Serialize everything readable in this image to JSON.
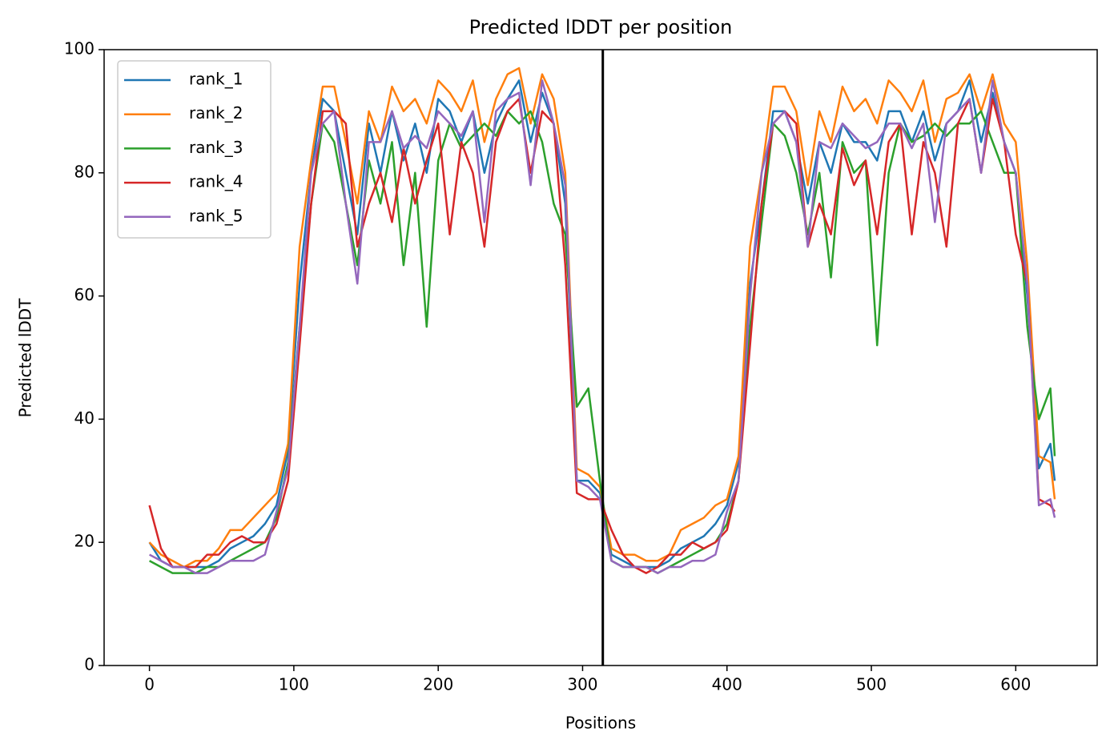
{
  "chart_data": {
    "type": "line",
    "title": "Predicted lDDT per position",
    "xlabel": "Positions",
    "ylabel": "Predicted lDDT",
    "x": [
      0,
      8,
      16,
      24,
      32,
      40,
      48,
      56,
      64,
      72,
      80,
      88,
      96,
      104,
      112,
      120,
      128,
      136,
      144,
      152,
      160,
      168,
      176,
      184,
      192,
      200,
      208,
      216,
      224,
      232,
      240,
      248,
      256,
      264,
      272,
      280,
      288,
      296,
      304,
      312,
      320,
      328,
      336,
      344,
      352,
      360,
      368,
      376,
      384,
      392,
      400,
      408,
      416,
      424,
      432,
      440,
      448,
      456,
      464,
      472,
      480,
      488,
      496,
      504,
      512,
      520,
      528,
      536,
      544,
      552,
      560,
      568,
      576,
      584,
      592,
      600,
      608,
      616,
      624,
      627
    ],
    "series": [
      {
        "name": "rank_1",
        "color": "#1f77b4",
        "values": [
          20,
          17,
          16,
          16,
          16,
          16,
          17,
          19,
          20,
          21,
          23,
          26,
          35,
          62,
          80,
          92,
          90,
          80,
          70,
          88,
          80,
          90,
          82,
          88,
          80,
          92,
          90,
          85,
          90,
          80,
          88,
          92,
          95,
          85,
          93,
          88,
          75,
          30,
          30,
          28,
          18,
          17,
          16,
          16,
          16,
          17,
          19,
          20,
          21,
          23,
          26,
          33,
          62,
          75,
          90,
          90,
          85,
          75,
          85,
          80,
          88,
          85,
          85,
          82,
          90,
          90,
          85,
          90,
          82,
          88,
          90,
          95,
          85,
          93,
          85,
          80,
          60,
          32,
          36,
          30
        ]
      },
      {
        "name": "rank_2",
        "color": "#ff7f0e",
        "values": [
          20,
          18,
          17,
          16,
          17,
          17,
          19,
          22,
          22,
          24,
          26,
          28,
          36,
          68,
          82,
          94,
          94,
          85,
          75,
          90,
          85,
          94,
          90,
          92,
          88,
          95,
          93,
          90,
          95,
          85,
          92,
          96,
          97,
          88,
          96,
          92,
          80,
          32,
          31,
          29,
          19,
          18,
          18,
          17,
          17,
          18,
          22,
          23,
          24,
          26,
          27,
          34,
          68,
          80,
          94,
          94,
          90,
          78,
          90,
          85,
          94,
          90,
          92,
          88,
          95,
          93,
          90,
          95,
          85,
          92,
          93,
          96,
          90,
          96,
          88,
          85,
          65,
          34,
          33,
          27
        ]
      },
      {
        "name": "rank_3",
        "color": "#2ca02c",
        "values": [
          17,
          16,
          15,
          15,
          15,
          16,
          16,
          17,
          18,
          19,
          20,
          24,
          33,
          55,
          75,
          88,
          85,
          75,
          65,
          82,
          75,
          85,
          65,
          80,
          55,
          82,
          88,
          84,
          86,
          88,
          86,
          90,
          88,
          90,
          85,
          75,
          70,
          42,
          45,
          30,
          17,
          16,
          16,
          16,
          15,
          16,
          17,
          18,
          19,
          20,
          23,
          30,
          55,
          72,
          88,
          86,
          80,
          70,
          80,
          63,
          85,
          80,
          82,
          52,
          80,
          88,
          85,
          86,
          88,
          86,
          88,
          88,
          90,
          85,
          80,
          80,
          55,
          40,
          45,
          34
        ]
      },
      {
        "name": "rank_4",
        "color": "#d62728",
        "values": [
          26,
          19,
          16,
          16,
          16,
          18,
          18,
          20,
          21,
          20,
          20,
          23,
          30,
          52,
          75,
          90,
          90,
          88,
          68,
          75,
          80,
          72,
          84,
          75,
          82,
          88,
          70,
          85,
          80,
          68,
          85,
          90,
          92,
          80,
          90,
          88,
          65,
          28,
          27,
          27,
          22,
          18,
          16,
          15,
          16,
          18,
          18,
          20,
          19,
          20,
          22,
          30,
          52,
          75,
          88,
          90,
          88,
          68,
          75,
          70,
          84,
          78,
          82,
          70,
          85,
          88,
          70,
          85,
          80,
          68,
          88,
          92,
          80,
          92,
          85,
          70,
          62,
          27,
          26,
          25
        ]
      },
      {
        "name": "rank_5",
        "color": "#9467bd",
        "values": [
          18,
          17,
          16,
          16,
          15,
          15,
          16,
          17,
          17,
          17,
          18,
          25,
          32,
          55,
          80,
          88,
          90,
          75,
          62,
          85,
          85,
          90,
          84,
          86,
          84,
          90,
          88,
          86,
          90,
          72,
          90,
          92,
          93,
          78,
          95,
          88,
          78,
          30,
          29,
          27,
          17,
          16,
          16,
          16,
          15,
          16,
          16,
          17,
          17,
          18,
          25,
          30,
          60,
          80,
          88,
          90,
          85,
          68,
          85,
          84,
          88,
          86,
          84,
          85,
          88,
          88,
          84,
          88,
          72,
          88,
          90,
          92,
          80,
          95,
          85,
          80,
          62,
          26,
          27,
          24
        ]
      }
    ],
    "vline": 314,
    "xlim": [
      -31.4,
      656.4
    ],
    "ylim": [
      0,
      100
    ],
    "xticks": [
      0,
      100,
      200,
      300,
      400,
      500,
      600
    ],
    "yticks": [
      0,
      20,
      40,
      60,
      80,
      100
    ],
    "legend": "upper left"
  }
}
